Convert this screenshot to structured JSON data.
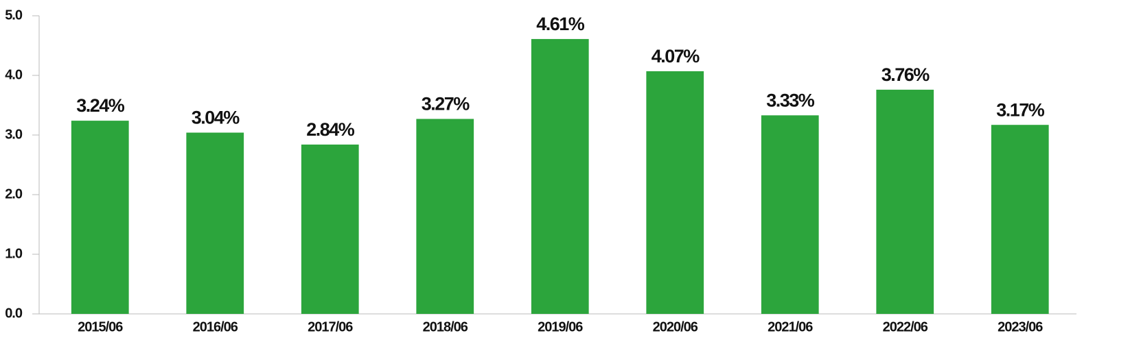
{
  "chart_data": {
    "type": "bar",
    "categories": [
      "2015/06",
      "2016/06",
      "2017/06",
      "2018/06",
      "2019/06",
      "2020/06",
      "2021/06",
      "2022/06",
      "2023/06"
    ],
    "values": [
      3.24,
      3.04,
      2.84,
      3.27,
      4.61,
      4.07,
      3.33,
      3.76,
      3.17
    ],
    "value_labels": [
      "3.24%",
      "3.04%",
      "2.84%",
      "3.27%",
      "4.61%",
      "4.07%",
      "3.33%",
      "3.76%",
      "3.17%"
    ],
    "color": "#2ca53c",
    "ylim": [
      0,
      5
    ],
    "yticks": [
      {
        "value": 0,
        "label": "0.0"
      },
      {
        "value": 1,
        "label": "1.0"
      },
      {
        "value": 2,
        "label": "2.0"
      },
      {
        "value": 3,
        "label": "3.0"
      },
      {
        "value": 4,
        "label": "4.0"
      },
      {
        "value": 5,
        "label": "5.0"
      }
    ],
    "grid": false
  }
}
